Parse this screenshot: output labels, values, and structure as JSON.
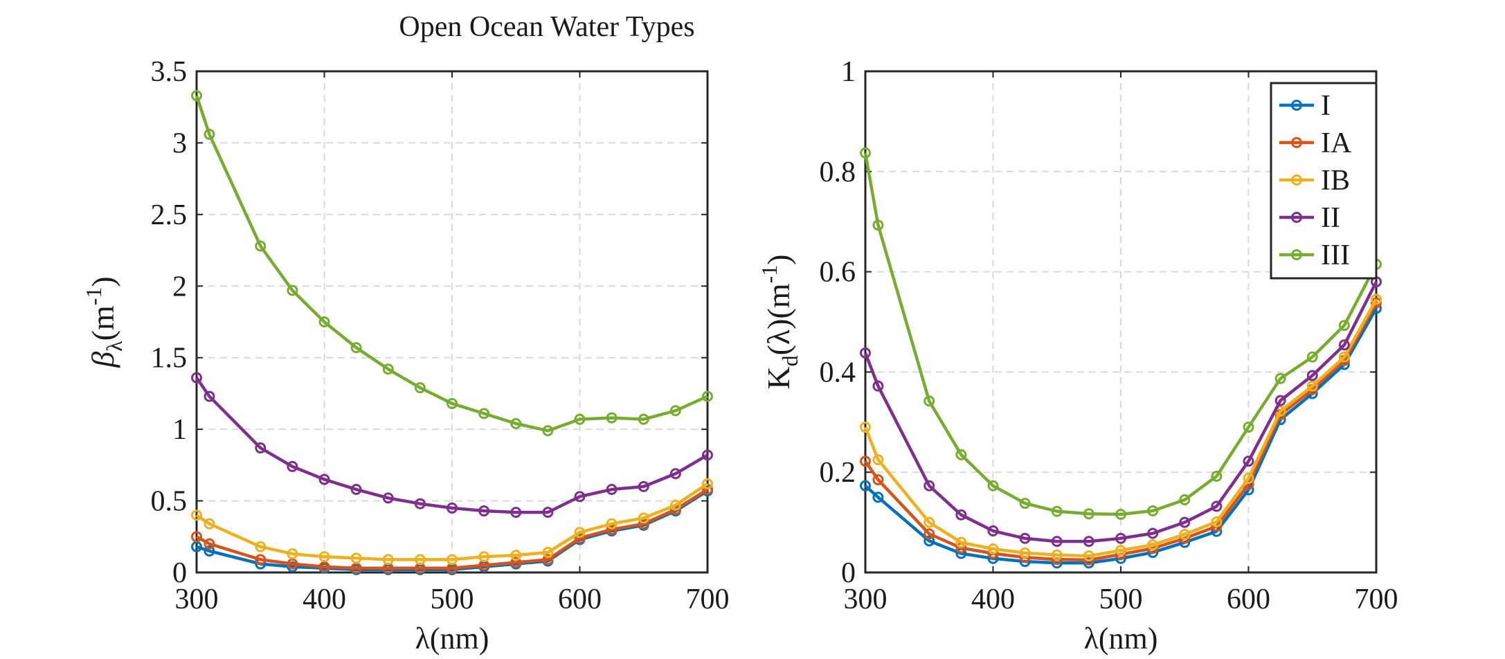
{
  "figure": {
    "title": "Open Ocean Water Types"
  },
  "colors": {
    "I": "#0072BD",
    "IA": "#D95319",
    "IB": "#EDB120",
    "II": "#7E2F8E",
    "III": "#77AC30",
    "grid": "#d9d9d9",
    "axis": "#262626"
  },
  "chart_data": [
    {
      "type": "line",
      "title": "",
      "xlabel": "λ(nm)",
      "ylabel": {
        "base": "β",
        "subscript": "λ",
        "unit_open": "(m",
        "unit_exp": "-1",
        "unit_close": ")"
      },
      "xlim": [
        300,
        700
      ],
      "ylim": [
        0,
        3.5
      ],
      "xticks": [
        300,
        400,
        500,
        600,
        700
      ],
      "yticks": [
        0,
        0.5,
        1,
        1.5,
        2,
        2.5,
        3,
        3.5
      ],
      "xtick_labels": [
        "300",
        "400",
        "500",
        "600",
        "700"
      ],
      "ytick_labels": [
        "0",
        "0.5",
        "1",
        "1.5",
        "2",
        "2.5",
        "3",
        "3.5"
      ],
      "grid": true,
      "x": [
        300,
        310,
        350,
        375,
        400,
        425,
        450,
        475,
        500,
        525,
        550,
        575,
        600,
        625,
        650,
        675,
        700
      ],
      "series": [
        {
          "name": "I",
          "color_key": "I",
          "values": [
            0.18,
            0.15,
            0.06,
            0.04,
            0.03,
            0.02,
            0.02,
            0.02,
            0.02,
            0.04,
            0.06,
            0.08,
            0.23,
            0.29,
            0.33,
            0.43,
            0.57
          ]
        },
        {
          "name": "IA",
          "color_key": "IA",
          "values": [
            0.25,
            0.2,
            0.09,
            0.06,
            0.04,
            0.03,
            0.03,
            0.03,
            0.03,
            0.05,
            0.07,
            0.09,
            0.24,
            0.3,
            0.34,
            0.44,
            0.58
          ]
        },
        {
          "name": "IB",
          "color_key": "IB",
          "values": [
            0.4,
            0.34,
            0.18,
            0.13,
            0.11,
            0.1,
            0.09,
            0.09,
            0.09,
            0.11,
            0.12,
            0.14,
            0.28,
            0.34,
            0.38,
            0.47,
            0.62
          ]
        },
        {
          "name": "II",
          "color_key": "II",
          "values": [
            1.36,
            1.23,
            0.87,
            0.74,
            0.65,
            0.58,
            0.52,
            0.48,
            0.45,
            0.43,
            0.42,
            0.42,
            0.53,
            0.58,
            0.6,
            0.69,
            0.82
          ]
        },
        {
          "name": "III",
          "color_key": "III",
          "values": [
            3.33,
            3.06,
            2.28,
            1.97,
            1.75,
            1.57,
            1.42,
            1.29,
            1.18,
            1.11,
            1.04,
            0.99,
            1.07,
            1.08,
            1.07,
            1.13,
            1.23
          ]
        }
      ]
    },
    {
      "type": "line",
      "title": "",
      "xlabel": "λ(nm)",
      "ylabel": {
        "base": "K",
        "subscript": "d",
        "middle": "(λ)(m",
        "unit_exp": "-1",
        "unit_close": ")"
      },
      "xlim": [
        300,
        700
      ],
      "ylim": [
        0,
        1
      ],
      "xticks": [
        300,
        400,
        500,
        600,
        700
      ],
      "yticks": [
        0,
        0.2,
        0.4,
        0.6,
        0.8,
        1
      ],
      "xtick_labels": [
        "300",
        "400",
        "500",
        "600",
        "700"
      ],
      "ytick_labels": [
        "0",
        "0.2",
        "0.4",
        "0.6",
        "0.8",
        "1"
      ],
      "grid": true,
      "legend": {
        "placement": "top-right",
        "entries": [
          "I",
          "IA",
          "IB",
          "II",
          "III"
        ]
      },
      "x": [
        300,
        310,
        350,
        375,
        400,
        425,
        450,
        475,
        500,
        525,
        550,
        575,
        600,
        625,
        650,
        675,
        700
      ],
      "series": [
        {
          "name": "I",
          "color_key": "I",
          "values": [
            0.173,
            0.15,
            0.063,
            0.038,
            0.028,
            0.022,
            0.019,
            0.019,
            0.028,
            0.04,
            0.06,
            0.082,
            0.165,
            0.305,
            0.357,
            0.415,
            0.527
          ]
        },
        {
          "name": "IA",
          "color_key": "IA",
          "values": [
            0.222,
            0.185,
            0.077,
            0.049,
            0.038,
            0.03,
            0.026,
            0.025,
            0.036,
            0.048,
            0.068,
            0.092,
            0.176,
            0.315,
            0.365,
            0.423,
            0.538
          ]
        },
        {
          "name": "IB",
          "color_key": "IB",
          "values": [
            0.29,
            0.225,
            0.1,
            0.06,
            0.047,
            0.039,
            0.035,
            0.033,
            0.044,
            0.055,
            0.076,
            0.101,
            0.188,
            0.322,
            0.372,
            0.43,
            0.545
          ]
        },
        {
          "name": "II",
          "color_key": "II",
          "values": [
            0.438,
            0.372,
            0.173,
            0.115,
            0.083,
            0.068,
            0.062,
            0.062,
            0.068,
            0.078,
            0.1,
            0.132,
            0.222,
            0.343,
            0.393,
            0.454,
            0.58
          ]
        },
        {
          "name": "III",
          "color_key": "III",
          "values": [
            0.837,
            0.693,
            0.342,
            0.235,
            0.173,
            0.138,
            0.122,
            0.117,
            0.116,
            0.123,
            0.145,
            0.192,
            0.29,
            0.387,
            0.43,
            0.493,
            0.615
          ]
        }
      ]
    }
  ]
}
